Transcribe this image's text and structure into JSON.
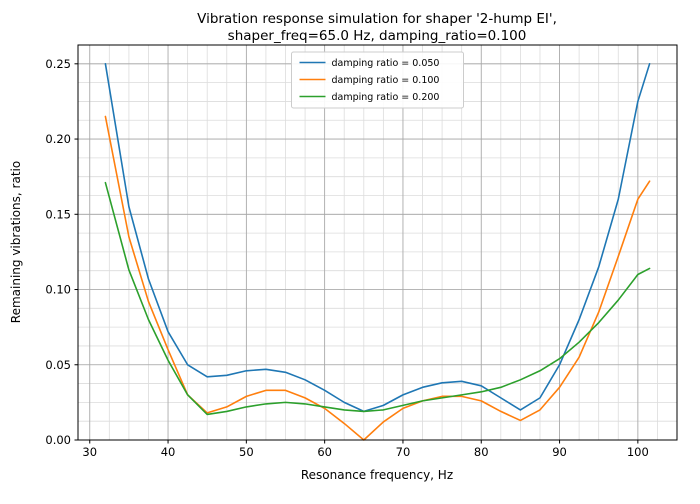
{
  "chart_data": {
    "type": "line",
    "title_line1": "Vibration response simulation for shaper '2-hump EI',",
    "title_line2": "shaper_freq=65.0 Hz, damping_ratio=0.100",
    "xlabel": "Resonance frequency, Hz",
    "ylabel": "Remaining vibrations, ratio",
    "xlim": [
      28.5,
      105
    ],
    "ylim": [
      0,
      0.2625
    ],
    "x_ticks": [
      30,
      40,
      50,
      60,
      70,
      80,
      90,
      100
    ],
    "x_tick_labels": [
      "30",
      "40",
      "50",
      "60",
      "70",
      "80",
      "90",
      "100"
    ],
    "y_ticks": [
      0,
      0.05,
      0.1,
      0.15,
      0.2,
      0.25
    ],
    "y_tick_labels": [
      "0.00",
      "0.05",
      "0.10",
      "0.15",
      "0.20",
      "0.25"
    ],
    "x_minor_step": 2.5,
    "y_minor_step": 0.0125,
    "grid": "both",
    "legend_position": "upper center",
    "colors": {
      "series1": "#1f77b4",
      "series2": "#ff7f0e",
      "series3": "#2ca02c",
      "grid_major": "#a6a6a6",
      "grid_minor": "#dcdcdc"
    },
    "x": [
      32,
      35,
      37.5,
      40,
      42.5,
      45,
      47.5,
      50,
      52.5,
      55,
      57.5,
      60,
      62.5,
      65,
      67.5,
      70,
      72.5,
      75,
      77.5,
      80,
      82.5,
      85,
      87.5,
      90,
      92.5,
      95,
      97.5,
      100,
      101.5
    ],
    "series": [
      {
        "name": "damping ratio = 0.050",
        "color": "#1f77b4",
        "values": [
          0.25,
          0.155,
          0.107,
          0.072,
          0.05,
          0.042,
          0.043,
          0.046,
          0.047,
          0.045,
          0.04,
          0.033,
          0.025,
          0.019,
          0.023,
          0.03,
          0.035,
          0.038,
          0.039,
          0.036,
          0.028,
          0.02,
          0.028,
          0.05,
          0.08,
          0.115,
          0.16,
          0.225,
          0.25
        ]
      },
      {
        "name": "damping ratio = 0.100",
        "color": "#ff7f0e",
        "values": [
          0.215,
          0.135,
          0.092,
          0.06,
          0.03,
          0.018,
          0.022,
          0.029,
          0.033,
          0.033,
          0.028,
          0.021,
          0.011,
          0.0,
          0.012,
          0.021,
          0.026,
          0.029,
          0.029,
          0.026,
          0.019,
          0.013,
          0.02,
          0.035,
          0.055,
          0.085,
          0.122,
          0.16,
          0.172
        ]
      },
      {
        "name": "damping ratio = 0.200",
        "color": "#2ca02c",
        "values": [
          0.171,
          0.113,
          0.08,
          0.053,
          0.03,
          0.017,
          0.019,
          0.022,
          0.024,
          0.025,
          0.024,
          0.022,
          0.02,
          0.019,
          0.02,
          0.023,
          0.026,
          0.028,
          0.03,
          0.032,
          0.035,
          0.04,
          0.046,
          0.054,
          0.065,
          0.078,
          0.093,
          0.11,
          0.114
        ]
      }
    ]
  }
}
